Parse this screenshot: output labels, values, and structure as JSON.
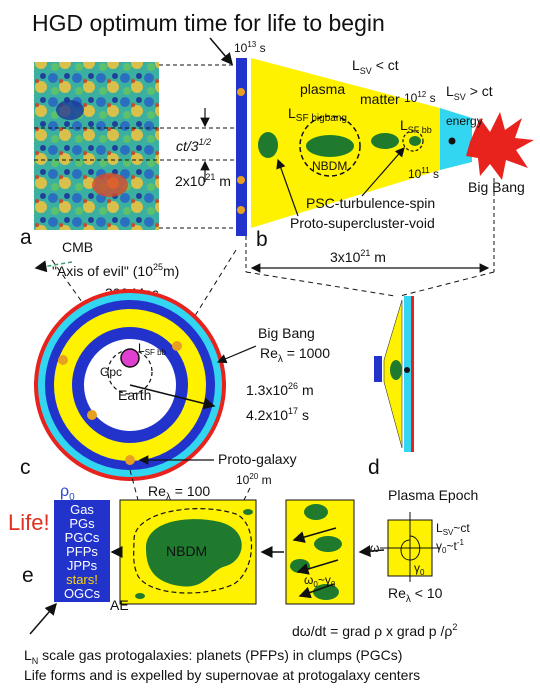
{
  "title": "HGD optimum time for life to begin",
  "panels": {
    "a": {
      "letter": "a",
      "image_label": "CMB",
      "axis_of_evil": "\"Axis of evil\" (10",
      "axis_of_evil_exp": "25",
      "axis_of_evil_unit": "m)",
      "distance": "300 Mpc",
      "ct_label": "ct/3",
      "ct_exp": "1/2",
      "scale_label": "2x10",
      "scale_exp": "21",
      "scale_unit": " m"
    },
    "b": {
      "letter": "b",
      "time_top": "10",
      "time_top_exp": "13",
      "time_top_unit": " s",
      "lsv_lt": "L",
      "lsv_lt_sub": "SV",
      "lsv_lt_rest": " < ct",
      "lsv_gt": "L",
      "lsv_gt_sub": "SV",
      "lsv_gt_rest": " > ct",
      "plasma": "plasma",
      "matter": "matter",
      "time_mid": "10",
      "time_mid_exp": "12",
      "time_mid_unit": " s",
      "energy": "energy",
      "lsf_bigbang": "L",
      "lsf_bigbang_sub": "SF bigbang",
      "lsf_bb": "L",
      "lsf_bb_sub": "SF bb",
      "nbdm": "NBDM",
      "time_bot": "10",
      "time_bot_exp": "11",
      "time_bot_unit": " s",
      "big_bang": "Big Bang",
      "psc": "PSC-turbulence-spin",
      "proto_void": "Proto-supercluster-void",
      "width": "3x10",
      "width_exp": "21",
      "width_unit": " m"
    },
    "c": {
      "letter": "c",
      "big_bang": "Big Bang",
      "re_label": "Re",
      "re_sub": "λ",
      "re_value": " = 1000",
      "gpc": "Gpc",
      "lsf": "L",
      "lsf_sub": "SF bb",
      "earth": "Earth",
      "radius": "1.3x10",
      "radius_exp": "26",
      "radius_unit": " m",
      "time": "4.2x10",
      "time_exp": "17",
      "time_unit": " s",
      "proto_galaxy": "Proto-galaxy",
      "pg_scale": "10",
      "pg_scale_exp": "20",
      "pg_scale_unit": " m"
    },
    "d": {
      "letter": "d"
    },
    "e": {
      "letter": "e",
      "life": "Life!",
      "rho0": "ρ",
      "rho0_sub": "0",
      "box_items": [
        "Gas",
        "PGs",
        "PGCs",
        "PFPs",
        "JPPs",
        "stars!",
        "OGCs"
      ],
      "re_label": "Re",
      "re_sub": "λ",
      "re_value": " = 100",
      "nbdm": "NBDM",
      "ae": "AE",
      "plasma_epoch": "Plasma Epoch",
      "lsv_ct": "L",
      "lsv_ct_sub": "SV",
      "lsv_ct_rest": "~ct",
      "gamma_t": "γ",
      "gamma_t_sub": "0",
      "gamma_t_rest": "~t",
      "gamma_t_exp": "-1",
      "omega": "ω",
      "omega0": "ω",
      "omega0_sub": "0",
      "omega0_rest": "~γ",
      "omega0_rest_sub": "0",
      "gamma0": "γ",
      "gamma0_sub": "0",
      "re_small": "Re",
      "re_small_sub": "λ",
      "re_small_value": " < 10",
      "equation": "dω/dt = grad ρ x grad p /ρ",
      "equation_exp": "2"
    }
  },
  "caption_line1": "L",
  "caption_line1_sub": "N",
  "caption_line1_rest": " scale gas protogalaxies: planets (PFPs) in clumps (PGCs)",
  "caption_line2": "Life forms and is expelled by supernovae at protogalaxy centers",
  "colors": {
    "blue": "#2233cc",
    "yellow": "#fff200",
    "green": "#1f7a2e",
    "cyan": "#33d6f0",
    "red": "#e8231e",
    "orange": "#e8a020",
    "magenta": "#e040d0"
  }
}
